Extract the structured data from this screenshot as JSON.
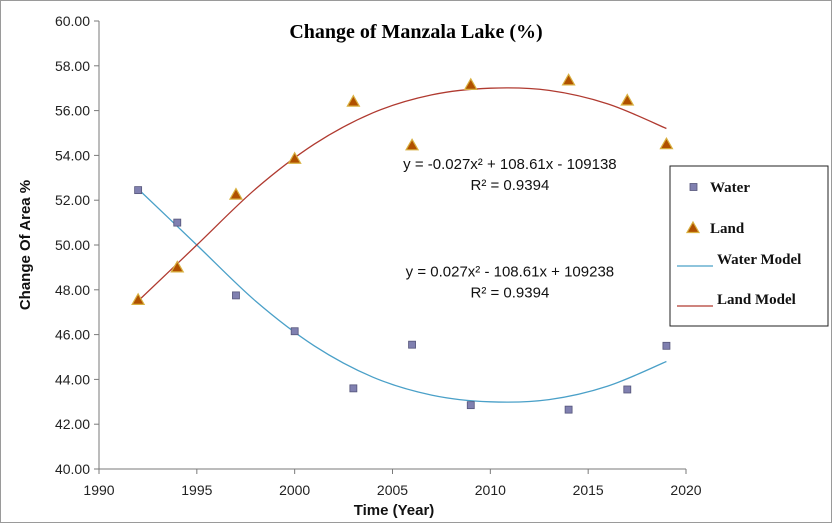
{
  "chart_data": {
    "type": "scatter",
    "title": "Change of Manzala Lake (%)",
    "xlabel": "Time (Year)",
    "ylabel": "Change Of Area %",
    "xlim": [
      1990,
      2020
    ],
    "ylim": [
      40,
      60
    ],
    "x_ticks": [
      "1990",
      "1995",
      "2000",
      "2005",
      "2010",
      "2015",
      "2020"
    ],
    "y_ticks": [
      "40.00",
      "42.00",
      "44.00",
      "46.00",
      "48.00",
      "50.00",
      "52.00",
      "54.00",
      "56.00",
      "58.00",
      "60.00"
    ],
    "grid": false,
    "legend_position": "right",
    "series": [
      {
        "name": "Water",
        "marker": "square",
        "color": "#8080b0",
        "x": [
          1992,
          1994,
          1997,
          2000,
          2003,
          2006,
          2009,
          2014,
          2017,
          2019
        ],
        "y": [
          52.45,
          51.0,
          47.75,
          46.15,
          43.6,
          45.55,
          42.85,
          42.65,
          43.55,
          45.5
        ]
      },
      {
        "name": "Land",
        "marker": "triangle",
        "color": "#b05000",
        "x": [
          1992,
          1994,
          1997,
          2000,
          2003,
          2006,
          2009,
          2014,
          2017,
          2019
        ],
        "y": [
          47.55,
          49.0,
          52.25,
          53.85,
          56.4,
          54.45,
          57.15,
          57.35,
          56.45,
          54.5
        ]
      }
    ],
    "trendlines": [
      {
        "name": "Water Model",
        "color": "#4aa0c8",
        "x": [
          1992,
          1995,
          1998,
          2001,
          2004,
          2007,
          2010,
          2013,
          2016,
          2019
        ],
        "y": [
          52.5,
          50.0,
          47.5,
          45.5,
          44.1,
          43.3,
          43.0,
          43.1,
          43.7,
          44.8
        ]
      },
      {
        "name": "Land Model",
        "color": "#b03a30",
        "x": [
          1992,
          1995,
          1998,
          2001,
          2004,
          2007,
          2010,
          2013,
          2016,
          2019
        ],
        "y": [
          47.5,
          50.0,
          52.5,
          54.5,
          55.9,
          56.7,
          57.0,
          56.9,
          56.3,
          55.2
        ]
      }
    ],
    "annotations": [
      {
        "lines": [
          "y = -0.027x² + 108.61x - 109138",
          "R² = 0.9394"
        ],
        "x": 2011,
        "y": 53.4
      },
      {
        "lines": [
          "y = 0.027x² - 108.61x + 109238",
          "R² = 0.9394"
        ],
        "x": 2011,
        "y": 48.6
      }
    ]
  }
}
